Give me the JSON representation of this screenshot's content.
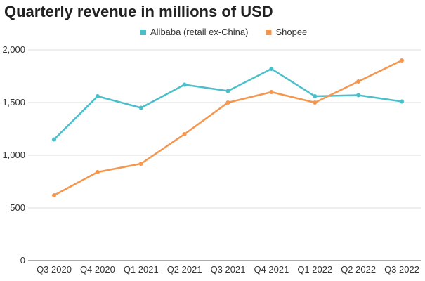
{
  "chart_data": {
    "type": "line",
    "title": "Quarterly revenue in millions of USD",
    "categories": [
      "Q3 2020",
      "Q4 2020",
      "Q1 2021",
      "Q2 2021",
      "Q3 2021",
      "Q4 2021",
      "Q1 2022",
      "Q2 2022",
      "Q3 2022"
    ],
    "series": [
      {
        "name": "Alibaba (retail ex-China)",
        "color": "#4bbfc9",
        "values": [
          1150,
          1560,
          1450,
          1670,
          1610,
          1820,
          1560,
          1570,
          1510
        ]
      },
      {
        "name": "Shopee",
        "color": "#f5964f",
        "values": [
          620,
          840,
          920,
          1200,
          1500,
          1600,
          1500,
          1700,
          1900
        ]
      }
    ],
    "yticks": [
      "0",
      "500",
      "1,000",
      "1,500",
      "2,000"
    ],
    "ylim": [
      0,
      2000
    ],
    "grid": true,
    "legend": "top"
  }
}
